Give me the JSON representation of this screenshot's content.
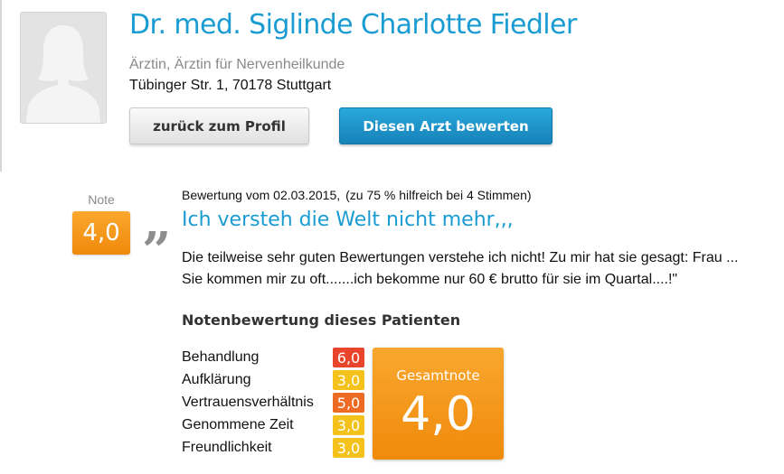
{
  "doctor": {
    "name": "Dr. med. Siglinde Charlotte Fiedler",
    "specialty": "Ärztin, Ärztin für Nervenheilkunde",
    "address": "Tübinger Str. 1, 70178 Stuttgart",
    "avatar_icon": "person-silhouette-icon"
  },
  "buttons": {
    "back_label": "zurück zum Profil",
    "rate_label": "Diesen Arzt bewerten"
  },
  "review": {
    "note_label": "Note",
    "note_value": "4,0",
    "meta_date": "Bewertung vom 02.03.2015,",
    "meta_helpful": "(zu 75 % hilfreich bei 4 Stimmen)",
    "quote_icon": "quote-icon",
    "quote_glyph": "„",
    "title": "Ich versteh die Welt nicht mehr,,,",
    "text": "Die teilweise sehr guten Bewertungen verstehe ich nicht! Zu mir hat sie gesagt: Frau ... Sie kommen mir zu oft.......ich bekomme nur 60 € brutto für sie im Quartal....!\""
  },
  "ratings": {
    "section_title": "Notenbewertung dieses Patienten",
    "criteria": [
      {
        "label": "Behandlung",
        "grade": "6,0",
        "color": "#e9452c"
      },
      {
        "label": "Aufklärung",
        "grade": "3,0",
        "color": "#f5c21c"
      },
      {
        "label": "Vertrauensverhältnis",
        "grade": "5,0",
        "color": "#ee6b24"
      },
      {
        "label": "Genommene Zeit",
        "grade": "3,0",
        "color": "#f5c21c"
      },
      {
        "label": "Freundlichkeit",
        "grade": "3,0",
        "color": "#f5c21c"
      }
    ],
    "total_label": "Gesamtnote",
    "total_value": "4,0"
  },
  "colors": {
    "brand_blue": "#1a9cd2",
    "note_orange": "#f39a18"
  }
}
